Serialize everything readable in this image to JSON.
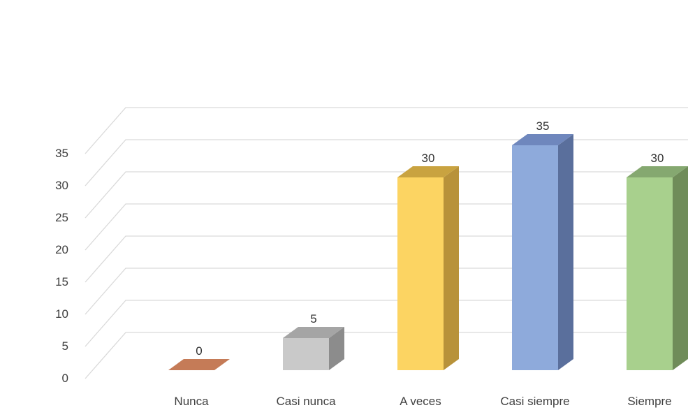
{
  "chart_data": {
    "type": "bar",
    "style": "3d-column",
    "categories": [
      "Nunca",
      "Casi nunca",
      "A veces",
      "Casi siempre",
      "Siempre"
    ],
    "values": [
      0,
      5,
      30,
      35,
      30
    ],
    "data_labels": [
      "0",
      "5",
      "30",
      "35",
      "30"
    ],
    "ylim": [
      0,
      35
    ],
    "yticks": [
      "0",
      "5",
      "10",
      "15",
      "20",
      "25",
      "30",
      "35"
    ],
    "title": "",
    "xlabel": "",
    "ylabel": "",
    "grid": true,
    "legend": "none",
    "colors": {
      "front": [
        "#c57b57",
        "#c9c9c9",
        "#fcd462",
        "#8eaadb",
        "#a8d08d"
      ],
      "side": [
        "#a35f3f",
        "#8c8c8c",
        "#b8923a",
        "#5a6f9c",
        "#6f8c59"
      ],
      "top": [
        "#d9926d",
        "#a5a5a5",
        "#c9a340",
        "#6f87bd",
        "#85a870"
      ],
      "grid": "#d9d9d9",
      "text": "#404040"
    }
  }
}
